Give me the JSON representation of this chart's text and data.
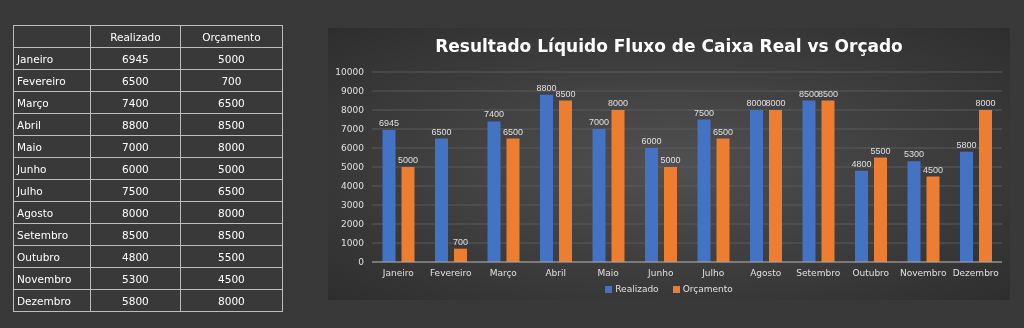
{
  "chart_data": [
    {
      "type": "other",
      "categories": [
        "Janeiro",
        "Fevereiro",
        "Março",
        "Abril",
        "Maio",
        "Junho",
        "Julho",
        "Agosto",
        "Setembro",
        "Outubro",
        "Novembro",
        "Dezembro"
      ],
      "series": [
        {
          "name": "Realizado",
          "values": [
            6945,
            6500,
            7400,
            8800,
            7000,
            6000,
            7500,
            8000,
            8500,
            4800,
            5300,
            5800
          ]
        },
        {
          "name": "Orçamento",
          "values": [
            5000,
            700,
            6500,
            8500,
            8000,
            5000,
            6500,
            8000,
            8500,
            5500,
            4500,
            8000
          ]
        }
      ],
      "data_labels": true
    },
    {
      "type": "bar",
      "title": "Resultado Líquido Fluxo de Caixa Real vs Orçado",
      "categories": [
        "Janeiro",
        "Fevereiro",
        "Março",
        "Abril",
        "Maio",
        "Junho",
        "Julho",
        "Agosto",
        "Setembro",
        "Outubro",
        "Novembro",
        "Dezembro"
      ],
      "series": [
        {
          "name": "Realizado",
          "color": "#4472c4",
          "values": [
            6945,
            6500,
            7400,
            8800,
            7000,
            6000,
            7500,
            8000,
            8500,
            4800,
            5300,
            5800
          ]
        },
        {
          "name": "Orçamento",
          "color": "#ed7d31",
          "values": [
            5000,
            700,
            6500,
            8500,
            8000,
            5000,
            6500,
            8000,
            8500,
            5500,
            4500,
            8000
          ]
        }
      ],
      "ylim": [
        0,
        10000
      ],
      "yticks": [
        0,
        1000,
        2000,
        3000,
        4000,
        5000,
        6000,
        7000,
        8000,
        9000,
        10000
      ],
      "grid": "y",
      "legend": "bottom",
      "data_labels": true
    }
  ]
}
